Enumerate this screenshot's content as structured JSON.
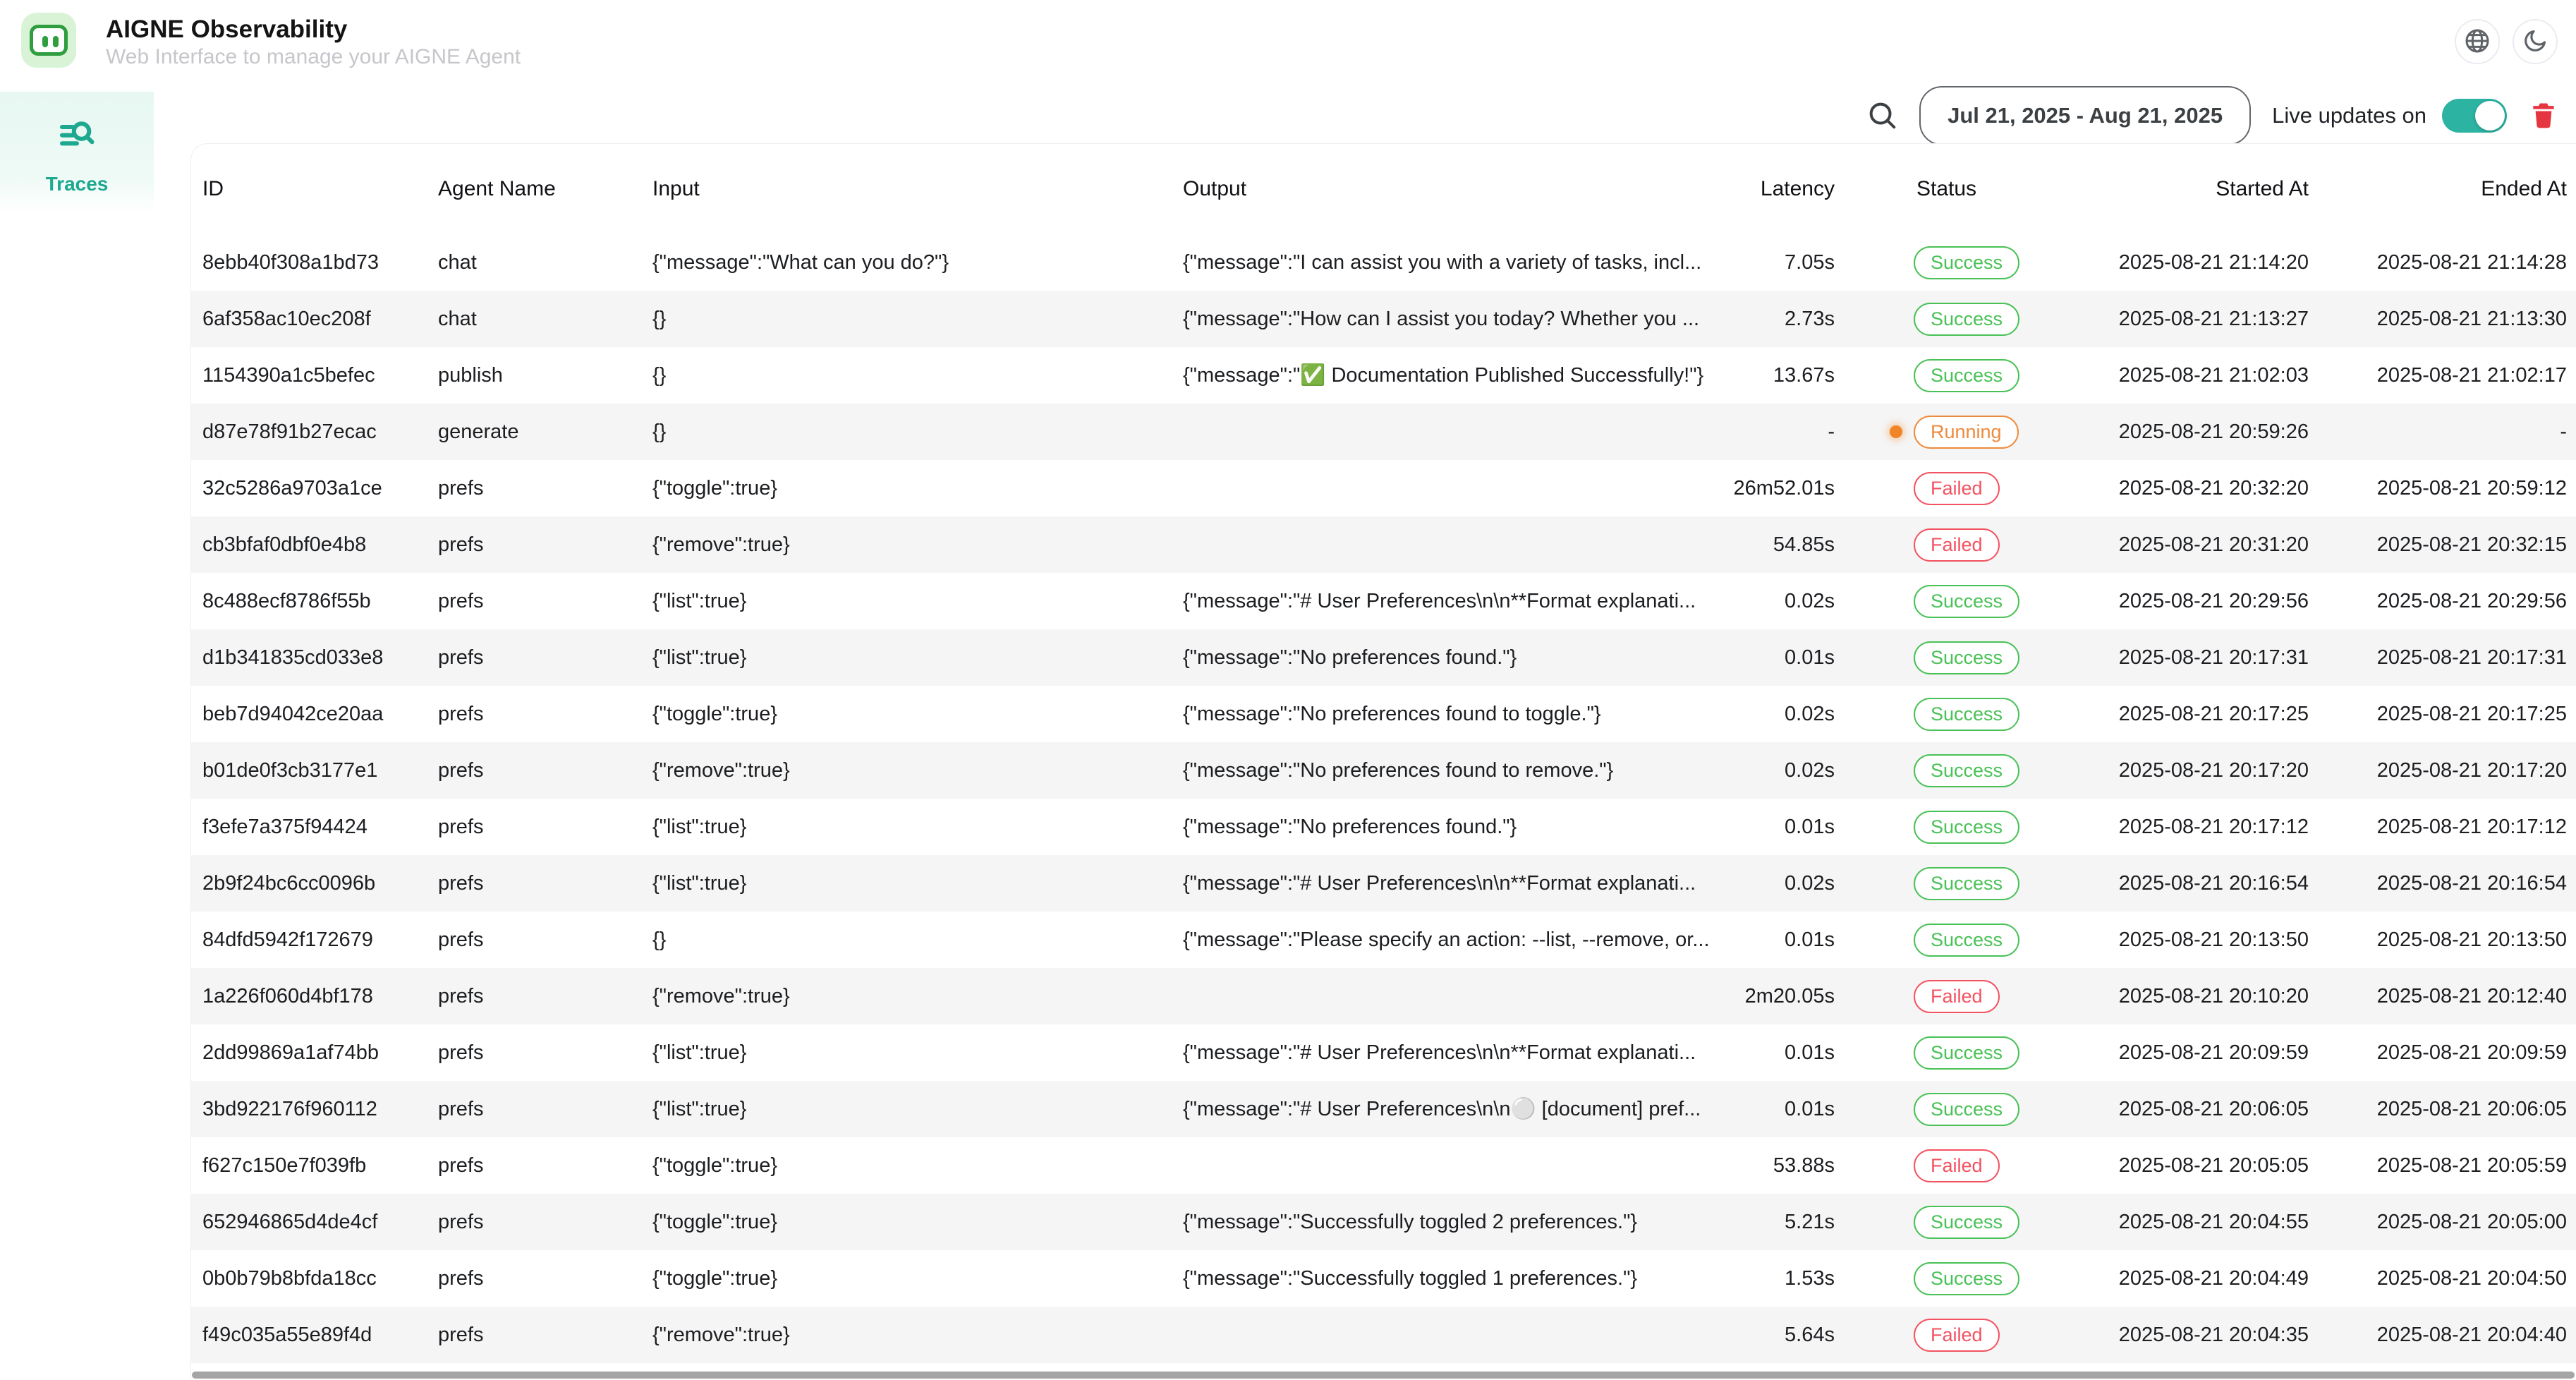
{
  "header": {
    "title": "AIGNE Observability",
    "subtitle": "Web Interface to manage your AIGNE Agent"
  },
  "topbar_actions": {
    "icons": [
      "globe-icon",
      "moon-icon"
    ]
  },
  "sidebar": {
    "items": [
      {
        "label": "Traces",
        "icon": "list-search-icon",
        "active": true
      }
    ]
  },
  "toolbar": {
    "search_icon": "search-icon",
    "date_range": "Jul 21, 2025 - Aug 21, 2025",
    "live_updates_label": "Live updates on",
    "live_updates_on": true,
    "delete_icon": "trash-icon"
  },
  "table": {
    "columns": [
      "ID",
      "Agent Name",
      "Input",
      "Output",
      "Latency",
      "Status",
      "Started At",
      "Ended At"
    ],
    "rows": [
      {
        "id": "8ebb40f308a1bd73",
        "agent": "chat",
        "input": "{\"message\":\"What can you do?\"}",
        "output": "{\"message\":\"I can assist you with a variety of tasks, incl...",
        "latency": "7.05s",
        "status": "Success",
        "started": "2025-08-21 21:14:20",
        "ended": "2025-08-21 21:14:28"
      },
      {
        "id": "6af358ac10ec208f",
        "agent": "chat",
        "input": "{}",
        "output": "{\"message\":\"How can I assist you today? Whether you ...",
        "latency": "2.73s",
        "status": "Success",
        "started": "2025-08-21 21:13:27",
        "ended": "2025-08-21 21:13:30"
      },
      {
        "id": "1154390a1c5befec",
        "agent": "publish",
        "input": "{}",
        "output": "{\"message\":\"✅ Documentation Published Successfully!\"}",
        "latency": "13.67s",
        "status": "Success",
        "started": "2025-08-21 21:02:03",
        "ended": "2025-08-21 21:02:17"
      },
      {
        "id": "d87e78f91b27ecac",
        "agent": "generate",
        "input": "{}",
        "output": "",
        "latency": "-",
        "status": "Running",
        "started": "2025-08-21 20:59:26",
        "ended": "-"
      },
      {
        "id": "32c5286a9703a1ce",
        "agent": "prefs",
        "input": "{\"toggle\":true}",
        "output": "",
        "latency": "26m52.01s",
        "status": "Failed",
        "started": "2025-08-21 20:32:20",
        "ended": "2025-08-21 20:59:12"
      },
      {
        "id": "cb3bfaf0dbf0e4b8",
        "agent": "prefs",
        "input": "{\"remove\":true}",
        "output": "",
        "latency": "54.85s",
        "status": "Failed",
        "started": "2025-08-21 20:31:20",
        "ended": "2025-08-21 20:32:15"
      },
      {
        "id": "8c488ecf8786f55b",
        "agent": "prefs",
        "input": "{\"list\":true}",
        "output": "{\"message\":\"# User Preferences\\n\\n**Format explanati...",
        "latency": "0.02s",
        "status": "Success",
        "started": "2025-08-21 20:29:56",
        "ended": "2025-08-21 20:29:56"
      },
      {
        "id": "d1b341835cd033e8",
        "agent": "prefs",
        "input": "{\"list\":true}",
        "output": "{\"message\":\"No preferences found.\"}",
        "latency": "0.01s",
        "status": "Success",
        "started": "2025-08-21 20:17:31",
        "ended": "2025-08-21 20:17:31"
      },
      {
        "id": "beb7d94042ce20aa",
        "agent": "prefs",
        "input": "{\"toggle\":true}",
        "output": "{\"message\":\"No preferences found to toggle.\"}",
        "latency": "0.02s",
        "status": "Success",
        "started": "2025-08-21 20:17:25",
        "ended": "2025-08-21 20:17:25"
      },
      {
        "id": "b01de0f3cb3177e1",
        "agent": "prefs",
        "input": "{\"remove\":true}",
        "output": "{\"message\":\"No preferences found to remove.\"}",
        "latency": "0.02s",
        "status": "Success",
        "started": "2025-08-21 20:17:20",
        "ended": "2025-08-21 20:17:20"
      },
      {
        "id": "f3efe7a375f94424",
        "agent": "prefs",
        "input": "{\"list\":true}",
        "output": "{\"message\":\"No preferences found.\"}",
        "latency": "0.01s",
        "status": "Success",
        "started": "2025-08-21 20:17:12",
        "ended": "2025-08-21 20:17:12"
      },
      {
        "id": "2b9f24bc6cc0096b",
        "agent": "prefs",
        "input": "{\"list\":true}",
        "output": "{\"message\":\"# User Preferences\\n\\n**Format explanati...",
        "latency": "0.02s",
        "status": "Success",
        "started": "2025-08-21 20:16:54",
        "ended": "2025-08-21 20:16:54"
      },
      {
        "id": "84dfd5942f172679",
        "agent": "prefs",
        "input": "{}",
        "output": "{\"message\":\"Please specify an action: --list, --remove, or...",
        "latency": "0.01s",
        "status": "Success",
        "started": "2025-08-21 20:13:50",
        "ended": "2025-08-21 20:13:50"
      },
      {
        "id": "1a226f060d4bf178",
        "agent": "prefs",
        "input": "{\"remove\":true}",
        "output": "",
        "latency": "2m20.05s",
        "status": "Failed",
        "started": "2025-08-21 20:10:20",
        "ended": "2025-08-21 20:12:40"
      },
      {
        "id": "2dd99869a1af74bb",
        "agent": "prefs",
        "input": "{\"list\":true}",
        "output": "{\"message\":\"# User Preferences\\n\\n**Format explanati...",
        "latency": "0.01s",
        "status": "Success",
        "started": "2025-08-21 20:09:59",
        "ended": "2025-08-21 20:09:59"
      },
      {
        "id": "3bd922176f960112",
        "agent": "prefs",
        "input": "{\"list\":true}",
        "output": "{\"message\":\"# User Preferences\\n\\n⚪ [document] pref...",
        "latency": "0.01s",
        "status": "Success",
        "started": "2025-08-21 20:06:05",
        "ended": "2025-08-21 20:06:05"
      },
      {
        "id": "f627c150e7f039fb",
        "agent": "prefs",
        "input": "{\"toggle\":true}",
        "output": "",
        "latency": "53.88s",
        "status": "Failed",
        "started": "2025-08-21 20:05:05",
        "ended": "2025-08-21 20:05:59"
      },
      {
        "id": "652946865d4de4cf",
        "agent": "prefs",
        "input": "{\"toggle\":true}",
        "output": "{\"message\":\"Successfully toggled 2 preferences.\"}",
        "latency": "5.21s",
        "status": "Success",
        "started": "2025-08-21 20:04:55",
        "ended": "2025-08-21 20:05:00"
      },
      {
        "id": "0b0b79b8bfda18cc",
        "agent": "prefs",
        "input": "{\"toggle\":true}",
        "output": "{\"message\":\"Successfully toggled 1 preferences.\"}",
        "latency": "1.53s",
        "status": "Success",
        "started": "2025-08-21 20:04:49",
        "ended": "2025-08-21 20:04:50"
      },
      {
        "id": "f49c035a55e89f4d",
        "agent": "prefs",
        "input": "{\"remove\":true}",
        "output": "",
        "latency": "5.64s",
        "status": "Failed",
        "started": "2025-08-21 20:04:35",
        "ended": "2025-08-21 20:04:40"
      }
    ]
  },
  "colors": {
    "accent_teal": "#1da88f",
    "toggle_on": "#2cb3a2",
    "logo_green": "#2e9e3e",
    "logo_bg": "#d9f3d7",
    "success": "#49c156",
    "failed": "#f35260",
    "running": "#ee8a3c",
    "running_dot": "#f08426",
    "trash_red": "#e53540",
    "row_stripe": "#f5f5f5",
    "subtitle_gray": "#c6c6cb"
  }
}
